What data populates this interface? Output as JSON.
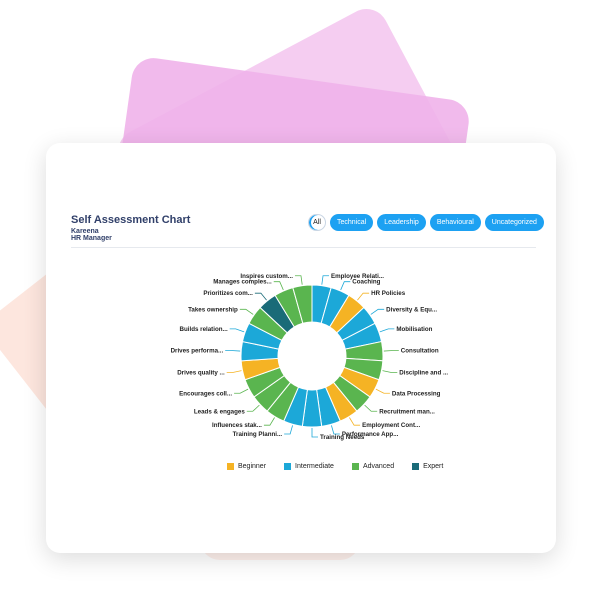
{
  "header": {
    "title": "Self Assessment Chart",
    "name": "Kareena",
    "role": "HR Manager"
  },
  "filters": [
    {
      "label": "All",
      "active": true
    },
    {
      "label": "Technical",
      "active": false
    },
    {
      "label": "Leadership",
      "active": false
    },
    {
      "label": "Behavioural",
      "active": false
    },
    {
      "label": "Uncategorized",
      "active": false
    }
  ],
  "colors": {
    "Beginner": "#f5b324",
    "Intermediate": "#1ca8d8",
    "Advanced": "#5ab54f",
    "Expert": "#1a6b78"
  },
  "chart_data": {
    "type": "donut",
    "title": "",
    "levels": [
      "Beginner",
      "Intermediate",
      "Advanced",
      "Expert"
    ],
    "segments": [
      {
        "label": "Employee Relati...",
        "level": "Intermediate"
      },
      {
        "label": "Coaching",
        "level": "Intermediate"
      },
      {
        "label": "HR Policies",
        "level": "Beginner"
      },
      {
        "label": "Diversity & Equ...",
        "level": "Intermediate"
      },
      {
        "label": "Mobilisation",
        "level": "Intermediate"
      },
      {
        "label": "Consultation",
        "level": "Advanced"
      },
      {
        "label": "Discipline and ...",
        "level": "Advanced"
      },
      {
        "label": "Data Processing",
        "level": "Beginner"
      },
      {
        "label": "Recruitment man...",
        "level": "Advanced"
      },
      {
        "label": "Employment Cont...",
        "level": "Beginner"
      },
      {
        "label": "Performance App...",
        "level": "Intermediate"
      },
      {
        "label": "Training Needs",
        "level": "Intermediate"
      },
      {
        "label": "Training Planni...",
        "level": "Intermediate"
      },
      {
        "label": "Influences stak...",
        "level": "Advanced"
      },
      {
        "label": "Leads & engages",
        "level": "Advanced"
      },
      {
        "label": "Encourages coll...",
        "level": "Advanced"
      },
      {
        "label": "Drives quality ...",
        "level": "Beginner"
      },
      {
        "label": "Drives performa...",
        "level": "Intermediate"
      },
      {
        "label": "Builds relation...",
        "level": "Intermediate"
      },
      {
        "label": "Takes ownership",
        "level": "Advanced"
      },
      {
        "label": "Prioritizes com...",
        "level": "Expert"
      },
      {
        "label": "Manages comples...",
        "level": "Advanced"
      },
      {
        "label": "Inspires custom...",
        "level": "Advanced"
      }
    ]
  }
}
